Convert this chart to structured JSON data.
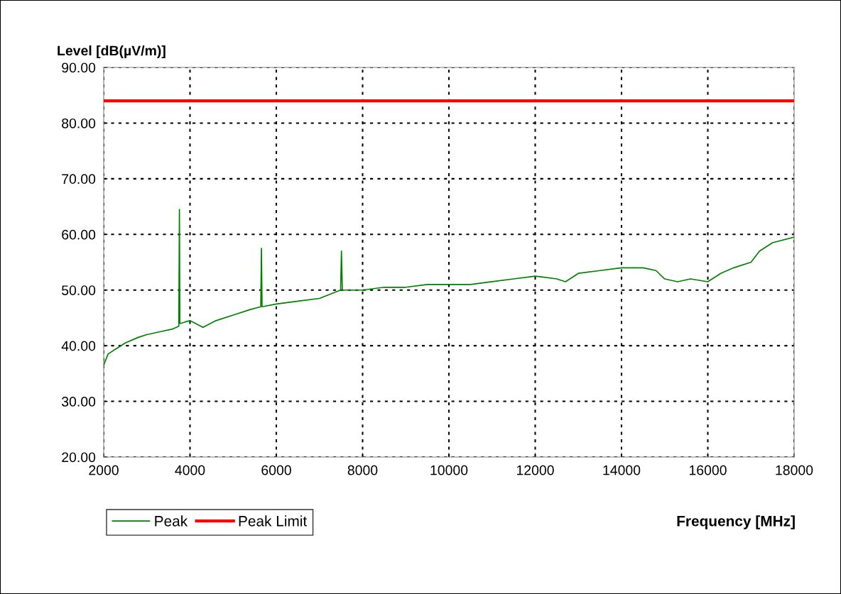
{
  "chart_data": {
    "type": "line",
    "xlabel": "Frequency [MHz]",
    "ylabel": "Level [dB(µV/m)]",
    "xlim": [
      2000,
      18000
    ],
    "xticks": [
      2000,
      4000,
      6000,
      8000,
      10000,
      12000,
      14000,
      16000,
      18000
    ],
    "ylim": [
      20,
      90
    ],
    "yticks": [
      {
        "value": 20,
        "label": "20.00"
      },
      {
        "value": 30,
        "label": "30.00"
      },
      {
        "value": 40,
        "label": "40.00"
      },
      {
        "value": 50,
        "label": "50.00"
      },
      {
        "value": 60,
        "label": "60.00"
      },
      {
        "value": 70,
        "label": "70.00"
      },
      {
        "value": 80,
        "label": "80.00"
      },
      {
        "value": 90,
        "label": "90.00"
      }
    ],
    "grid": true,
    "legend": "bottom left",
    "marker": "none",
    "line_style": "solid",
    "series": [
      {
        "name": "Peak",
        "color": "#008000",
        "x": [
          2000,
          2100,
          2300,
          2500,
          2800,
          3000,
          3300,
          3600,
          3740,
          3755,
          3765,
          3780,
          3900,
          4000,
          4300,
          4600,
          5000,
          5400,
          5640,
          5655,
          5670,
          6000,
          6500,
          7000,
          7490,
          7510,
          7530,
          8000,
          8500,
          9000,
          9500,
          10000,
          10500,
          11000,
          11500,
          12000,
          12500,
          12700,
          13000,
          13500,
          14000,
          14500,
          14800,
          15000,
          15300,
          15600,
          16000,
          16300,
          16600,
          17000,
          17200,
          17500,
          18000
        ],
        "values": [
          36.5,
          38.5,
          39.5,
          40.5,
          41.5,
          42,
          42.5,
          43,
          43.5,
          64.5,
          44,
          44,
          44.3,
          44.5,
          43.3,
          44.5,
          45.5,
          46.5,
          47,
          57.5,
          47,
          47.5,
          48,
          48.5,
          50,
          57,
          50,
          50,
          50.5,
          50.5,
          51,
          51,
          51,
          51.5,
          52,
          52.5,
          52,
          51.5,
          53,
          53.5,
          54,
          54,
          53.5,
          52,
          51.5,
          52,
          51.5,
          53,
          54,
          55,
          57,
          58.5,
          59.5
        ]
      },
      {
        "name": "Peak Limit",
        "color": "#ff0000",
        "x": [
          2000,
          18000
        ],
        "values": [
          84,
          84
        ]
      }
    ]
  }
}
